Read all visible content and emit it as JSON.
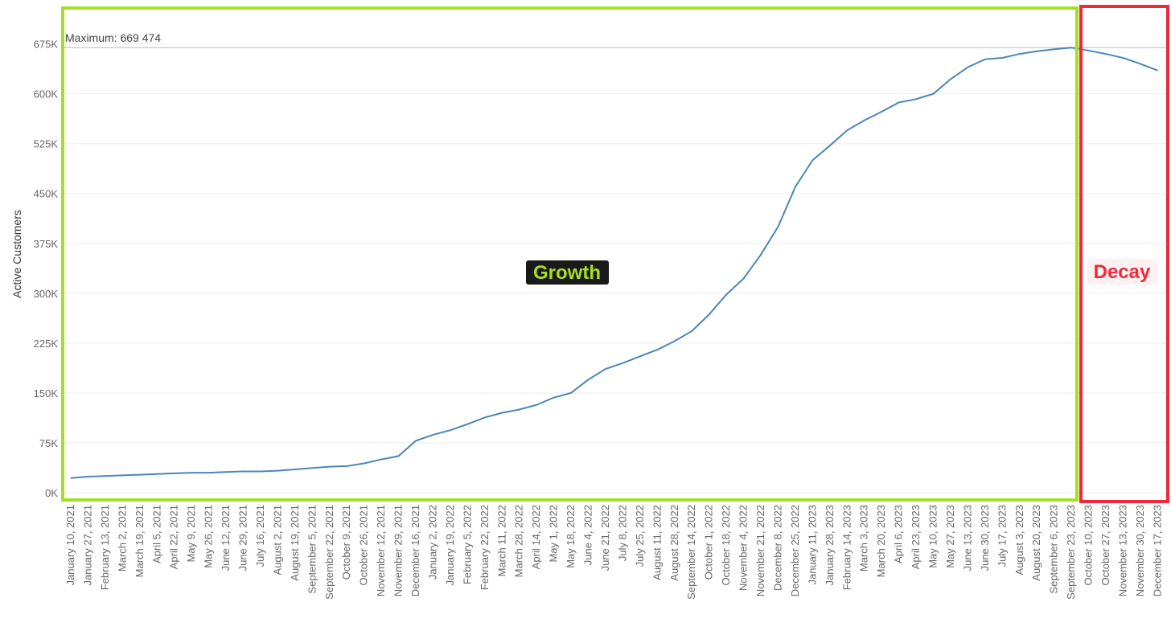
{
  "chart_data": {
    "type": "line",
    "y_label": "Active Customers",
    "categories": [
      "January 10, 2021",
      "January 27, 2021",
      "February 13, 2021",
      "March 2, 2021",
      "March 19, 2021",
      "April 5, 2021",
      "April 22, 2021",
      "May 9, 2021",
      "May 26, 2021",
      "June 12, 2021",
      "June 29, 2021",
      "July 16, 2021",
      "August 2, 2021",
      "August 19, 2021",
      "September 5, 2021",
      "September 22, 2021",
      "October 9, 2021",
      "October 26, 2021",
      "November 12, 2021",
      "November 29, 2021",
      "December 16, 2021",
      "January 2, 2022",
      "January 19, 2022",
      "February 5, 2022",
      "February 22, 2022",
      "March 11, 2022",
      "March 28, 2022",
      "April 14, 2022",
      "May 1, 2022",
      "May 18, 2022",
      "June 4, 2022",
      "June 21, 2022",
      "July 8, 2022",
      "July 25, 2022",
      "August 11, 2022",
      "August 28, 2022",
      "September 14, 2022",
      "October 1, 2022",
      "October 18, 2022",
      "November 4, 2022",
      "November 21, 2022",
      "December 8, 2022",
      "December 25, 2022",
      "January 11, 2023",
      "January 28, 2023",
      "February 14, 2023",
      "March 3, 2023",
      "March 20, 2023",
      "April 6, 2023",
      "April 23, 2023",
      "May 10, 2023",
      "May 27, 2023",
      "June 13, 2023",
      "June 30, 2023",
      "July 17, 2023",
      "August 3, 2023",
      "August 20, 2023",
      "September 6, 2023",
      "September 23, 2023",
      "October 10, 2023",
      "October 27, 2023",
      "November 13, 2023",
      "November 30, 2023",
      "December 17, 2023"
    ],
    "series": [
      {
        "color": "#4a86b8",
        "values": [
          22000,
          24000,
          25000,
          26000,
          27000,
          28000,
          29000,
          30000,
          30000,
          31000,
          32000,
          32000,
          33000,
          35000,
          37000,
          39000,
          40000,
          44000,
          50000,
          55000,
          78000,
          87000,
          94000,
          103000,
          113000,
          120000,
          125000,
          132000,
          143000,
          150000,
          170000,
          186000,
          195000,
          205000,
          215000,
          228000,
          243000,
          268000,
          298000,
          322000,
          358000,
          400000,
          460000,
          500000,
          522000,
          545000,
          560000,
          573000,
          587000,
          592000,
          600000,
          622000,
          640000,
          652000,
          654000,
          660000,
          664000,
          667000,
          669474,
          665000,
          660000,
          654000,
          645000,
          635000
        ]
      }
    ],
    "ylim": [
      -11000,
      729000
    ],
    "yticks": [
      {
        "value": 0,
        "label": "0K"
      },
      {
        "value": 75000,
        "label": "75K"
      },
      {
        "value": 150000,
        "label": "150K"
      },
      {
        "value": 225000,
        "label": "225K"
      },
      {
        "value": 300000,
        "label": "300K"
      },
      {
        "value": 375000,
        "label": "375K"
      },
      {
        "value": 450000,
        "label": "450K"
      },
      {
        "value": 525000,
        "label": "525K"
      },
      {
        "value": 600000,
        "label": "600K"
      },
      {
        "value": 675000,
        "label": "675K"
      }
    ],
    "grid": true,
    "reference_line": {
      "value": 669474,
      "label": "Maximum: 669 474"
    },
    "annotations": [
      {
        "text": "Growth",
        "color": "#a6de23"
      },
      {
        "text": "Decay",
        "color": "#f0283c"
      }
    ]
  }
}
